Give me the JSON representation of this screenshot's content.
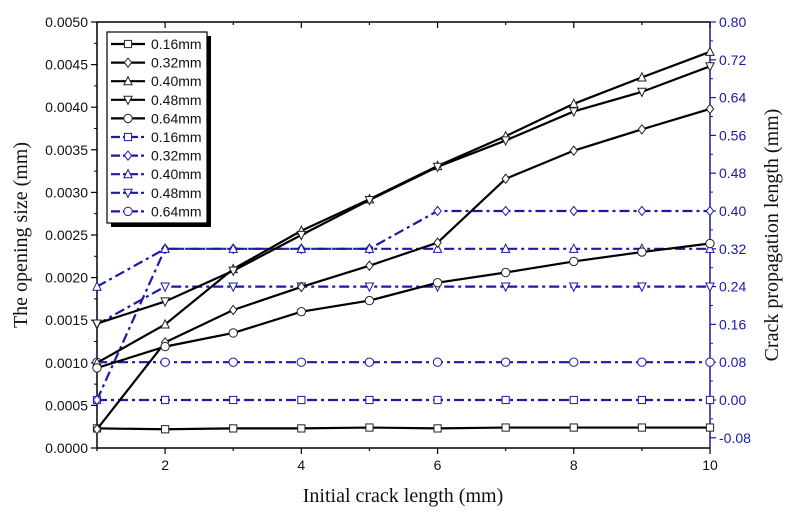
{
  "chart_data": {
    "type": "line",
    "title": "",
    "xlabel": "Initial crack length (mm)",
    "ylabel": "The opening size (mm)",
    "y2label": "Crack propagation length (mm)",
    "x": [
      1,
      2,
      3,
      4,
      5,
      6,
      7,
      8,
      9,
      10
    ],
    "xlim": [
      1,
      10
    ],
    "xticks": [
      2,
      4,
      6,
      8,
      10
    ],
    "ylim": [
      0,
      0.005
    ],
    "yticks": [
      "0.0000",
      "0.0005",
      "0.0010",
      "0.0015",
      "0.0020",
      "0.0025",
      "0.0030",
      "0.0035",
      "0.0040",
      "0.0045",
      "0.0050"
    ],
    "y2lim": [
      -0.1016,
      0.8
    ],
    "y2ticks": [
      "-0.08",
      "0.00",
      "0.08",
      "0.16",
      "0.24",
      "0.32",
      "0.40",
      "0.48",
      "0.56",
      "0.64",
      "0.72",
      "0.80"
    ],
    "grid": false,
    "legend_position": "upper-left",
    "series": [
      {
        "name": "0.16mm",
        "axis": "left",
        "marker": "square",
        "color": "#000000",
        "dash": "solid",
        "values": [
          0.00023,
          0.00022,
          0.00023,
          0.00023,
          0.00024,
          0.00023,
          0.00024,
          0.00024,
          0.00024,
          0.00024
        ]
      },
      {
        "name": "0.32mm",
        "axis": "left",
        "marker": "diamond",
        "color": "#000000",
        "dash": "solid",
        "values": [
          0.00022,
          0.00124,
          0.00162,
          0.00189,
          0.00214,
          0.00241,
          0.00316,
          0.00349,
          0.00374,
          0.00398
        ]
      },
      {
        "name": "0.40mm",
        "axis": "left",
        "marker": "triangle-up",
        "color": "#000000",
        "dash": "solid",
        "values": [
          0.001,
          0.00145,
          0.0021,
          0.00255,
          0.00292,
          0.00331,
          0.00366,
          0.00404,
          0.00435,
          0.00465
        ]
      },
      {
        "name": "0.48mm",
        "axis": "left",
        "marker": "triangle-down",
        "color": "#000000",
        "dash": "solid",
        "values": [
          0.00146,
          0.00172,
          0.00208,
          0.0025,
          0.00291,
          0.0033,
          0.00361,
          0.00395,
          0.00418,
          0.00448
        ]
      },
      {
        "name": "0.64mm",
        "axis": "left",
        "marker": "circle",
        "color": "#000000",
        "dash": "solid",
        "values": [
          0.00094,
          0.00119,
          0.00135,
          0.0016,
          0.00173,
          0.00194,
          0.00206,
          0.00219,
          0.0023,
          0.0024
        ]
      },
      {
        "name": "0.16mm",
        "axis": "right",
        "marker": "square",
        "color": "#1a1aa6",
        "dash": "dashdot",
        "values": [
          0.0,
          0.0,
          0.0,
          0.0,
          0.0,
          0.0,
          0.0,
          0.0,
          0.0,
          0.0
        ]
      },
      {
        "name": "0.32mm",
        "axis": "right",
        "marker": "diamond",
        "color": "#1a1aa6",
        "dash": "dashdot",
        "values": [
          0.0,
          0.32,
          0.32,
          0.32,
          0.32,
          0.4,
          0.4,
          0.4,
          0.4,
          0.4
        ]
      },
      {
        "name": "0.40mm",
        "axis": "right",
        "marker": "triangle-up",
        "color": "#1a1aa6",
        "dash": "dashdot",
        "values": [
          0.24,
          0.32,
          0.32,
          0.32,
          0.32,
          0.32,
          0.32,
          0.32,
          0.32,
          0.32
        ]
      },
      {
        "name": "0.48mm",
        "axis": "right",
        "marker": "triangle-down",
        "color": "#1a1aa6",
        "dash": "dashdot",
        "values": [
          0.16,
          0.24,
          0.24,
          0.24,
          0.24,
          0.24,
          0.24,
          0.24,
          0.24,
          0.24
        ]
      },
      {
        "name": "0.64mm",
        "axis": "right",
        "marker": "circle",
        "color": "#1a1aa6",
        "dash": "dashdot",
        "values": [
          0.08,
          0.08,
          0.08,
          0.08,
          0.08,
          0.08,
          0.08,
          0.08,
          0.08,
          0.08
        ]
      }
    ]
  },
  "colors": {
    "left_axis": "#000000",
    "right_axis": "#1a1aa6"
  }
}
